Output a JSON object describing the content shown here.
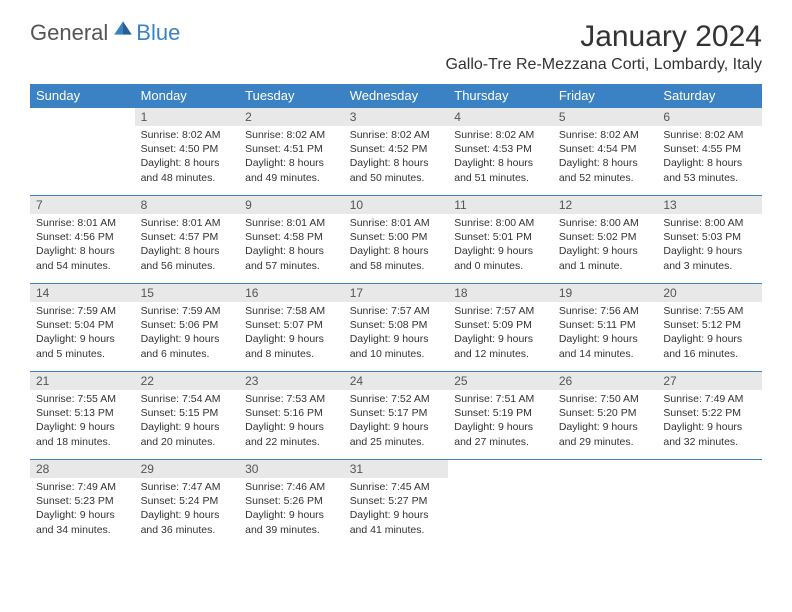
{
  "logo": {
    "text_gray": "General",
    "text_blue": "Blue"
  },
  "title": "January 2024",
  "location": "Gallo-Tre Re-Mezzana Corti, Lombardy, Italy",
  "colors": {
    "header_bg": "#3b82c4",
    "header_text": "#ffffff",
    "daynum_bg": "#e8e8e8",
    "daynum_text": "#555555",
    "body_text": "#333333",
    "row_border": "#3b82c4",
    "logo_gray": "#555555",
    "logo_blue": "#3b82c4"
  },
  "weekdays": [
    "Sunday",
    "Monday",
    "Tuesday",
    "Wednesday",
    "Thursday",
    "Friday",
    "Saturday"
  ],
  "weeks": [
    [
      null,
      {
        "n": "1",
        "sr": "Sunrise: 8:02 AM",
        "ss": "Sunset: 4:50 PM",
        "d1": "Daylight: 8 hours",
        "d2": "and 48 minutes."
      },
      {
        "n": "2",
        "sr": "Sunrise: 8:02 AM",
        "ss": "Sunset: 4:51 PM",
        "d1": "Daylight: 8 hours",
        "d2": "and 49 minutes."
      },
      {
        "n": "3",
        "sr": "Sunrise: 8:02 AM",
        "ss": "Sunset: 4:52 PM",
        "d1": "Daylight: 8 hours",
        "d2": "and 50 minutes."
      },
      {
        "n": "4",
        "sr": "Sunrise: 8:02 AM",
        "ss": "Sunset: 4:53 PM",
        "d1": "Daylight: 8 hours",
        "d2": "and 51 minutes."
      },
      {
        "n": "5",
        "sr": "Sunrise: 8:02 AM",
        "ss": "Sunset: 4:54 PM",
        "d1": "Daylight: 8 hours",
        "d2": "and 52 minutes."
      },
      {
        "n": "6",
        "sr": "Sunrise: 8:02 AM",
        "ss": "Sunset: 4:55 PM",
        "d1": "Daylight: 8 hours",
        "d2": "and 53 minutes."
      }
    ],
    [
      {
        "n": "7",
        "sr": "Sunrise: 8:01 AM",
        "ss": "Sunset: 4:56 PM",
        "d1": "Daylight: 8 hours",
        "d2": "and 54 minutes."
      },
      {
        "n": "8",
        "sr": "Sunrise: 8:01 AM",
        "ss": "Sunset: 4:57 PM",
        "d1": "Daylight: 8 hours",
        "d2": "and 56 minutes."
      },
      {
        "n": "9",
        "sr": "Sunrise: 8:01 AM",
        "ss": "Sunset: 4:58 PM",
        "d1": "Daylight: 8 hours",
        "d2": "and 57 minutes."
      },
      {
        "n": "10",
        "sr": "Sunrise: 8:01 AM",
        "ss": "Sunset: 5:00 PM",
        "d1": "Daylight: 8 hours",
        "d2": "and 58 minutes."
      },
      {
        "n": "11",
        "sr": "Sunrise: 8:00 AM",
        "ss": "Sunset: 5:01 PM",
        "d1": "Daylight: 9 hours",
        "d2": "and 0 minutes."
      },
      {
        "n": "12",
        "sr": "Sunrise: 8:00 AM",
        "ss": "Sunset: 5:02 PM",
        "d1": "Daylight: 9 hours",
        "d2": "and 1 minute."
      },
      {
        "n": "13",
        "sr": "Sunrise: 8:00 AM",
        "ss": "Sunset: 5:03 PM",
        "d1": "Daylight: 9 hours",
        "d2": "and 3 minutes."
      }
    ],
    [
      {
        "n": "14",
        "sr": "Sunrise: 7:59 AM",
        "ss": "Sunset: 5:04 PM",
        "d1": "Daylight: 9 hours",
        "d2": "and 5 minutes."
      },
      {
        "n": "15",
        "sr": "Sunrise: 7:59 AM",
        "ss": "Sunset: 5:06 PM",
        "d1": "Daylight: 9 hours",
        "d2": "and 6 minutes."
      },
      {
        "n": "16",
        "sr": "Sunrise: 7:58 AM",
        "ss": "Sunset: 5:07 PM",
        "d1": "Daylight: 9 hours",
        "d2": "and 8 minutes."
      },
      {
        "n": "17",
        "sr": "Sunrise: 7:57 AM",
        "ss": "Sunset: 5:08 PM",
        "d1": "Daylight: 9 hours",
        "d2": "and 10 minutes."
      },
      {
        "n": "18",
        "sr": "Sunrise: 7:57 AM",
        "ss": "Sunset: 5:09 PM",
        "d1": "Daylight: 9 hours",
        "d2": "and 12 minutes."
      },
      {
        "n": "19",
        "sr": "Sunrise: 7:56 AM",
        "ss": "Sunset: 5:11 PM",
        "d1": "Daylight: 9 hours",
        "d2": "and 14 minutes."
      },
      {
        "n": "20",
        "sr": "Sunrise: 7:55 AM",
        "ss": "Sunset: 5:12 PM",
        "d1": "Daylight: 9 hours",
        "d2": "and 16 minutes."
      }
    ],
    [
      {
        "n": "21",
        "sr": "Sunrise: 7:55 AM",
        "ss": "Sunset: 5:13 PM",
        "d1": "Daylight: 9 hours",
        "d2": "and 18 minutes."
      },
      {
        "n": "22",
        "sr": "Sunrise: 7:54 AM",
        "ss": "Sunset: 5:15 PM",
        "d1": "Daylight: 9 hours",
        "d2": "and 20 minutes."
      },
      {
        "n": "23",
        "sr": "Sunrise: 7:53 AM",
        "ss": "Sunset: 5:16 PM",
        "d1": "Daylight: 9 hours",
        "d2": "and 22 minutes."
      },
      {
        "n": "24",
        "sr": "Sunrise: 7:52 AM",
        "ss": "Sunset: 5:17 PM",
        "d1": "Daylight: 9 hours",
        "d2": "and 25 minutes."
      },
      {
        "n": "25",
        "sr": "Sunrise: 7:51 AM",
        "ss": "Sunset: 5:19 PM",
        "d1": "Daylight: 9 hours",
        "d2": "and 27 minutes."
      },
      {
        "n": "26",
        "sr": "Sunrise: 7:50 AM",
        "ss": "Sunset: 5:20 PM",
        "d1": "Daylight: 9 hours",
        "d2": "and 29 minutes."
      },
      {
        "n": "27",
        "sr": "Sunrise: 7:49 AM",
        "ss": "Sunset: 5:22 PM",
        "d1": "Daylight: 9 hours",
        "d2": "and 32 minutes."
      }
    ],
    [
      {
        "n": "28",
        "sr": "Sunrise: 7:49 AM",
        "ss": "Sunset: 5:23 PM",
        "d1": "Daylight: 9 hours",
        "d2": "and 34 minutes."
      },
      {
        "n": "29",
        "sr": "Sunrise: 7:47 AM",
        "ss": "Sunset: 5:24 PM",
        "d1": "Daylight: 9 hours",
        "d2": "and 36 minutes."
      },
      {
        "n": "30",
        "sr": "Sunrise: 7:46 AM",
        "ss": "Sunset: 5:26 PM",
        "d1": "Daylight: 9 hours",
        "d2": "and 39 minutes."
      },
      {
        "n": "31",
        "sr": "Sunrise: 7:45 AM",
        "ss": "Sunset: 5:27 PM",
        "d1": "Daylight: 9 hours",
        "d2": "and 41 minutes."
      },
      null,
      null,
      null
    ]
  ]
}
